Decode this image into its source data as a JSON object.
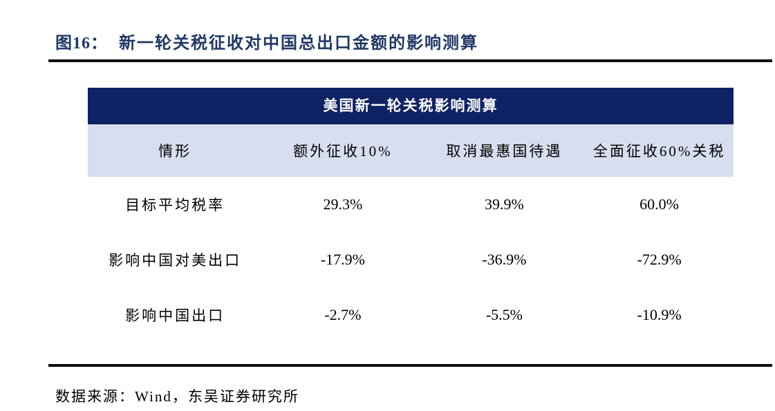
{
  "figure": {
    "label": "图16：",
    "title": "新一轮关税征收对中国总出口金额的影响测算"
  },
  "table": {
    "title": "美国新一轮关税影响测算",
    "columns": [
      "情形",
      "额外征收10%",
      "取消最惠国待遇",
      "全面征收60%关税"
    ],
    "rows": [
      {
        "label": "目标平均税率",
        "values": [
          "29.3%",
          "39.9%",
          "60.0%"
        ]
      },
      {
        "label": "影响中国对美出口",
        "values": [
          "-17.9%",
          "-36.9%",
          "-72.9%"
        ]
      },
      {
        "label": "影响中国出口",
        "values": [
          "-2.7%",
          "-5.5%",
          "-10.9%"
        ]
      }
    ]
  },
  "footer": {
    "source": "数据来源：Wind，东吴证券研究所"
  },
  "colors": {
    "table_header_bg": "#0F2264",
    "table_header_text": "#FFFFFF",
    "subheader_bg": "#D7DEEF",
    "figure_title_text": "#1F3864",
    "rule": "#0D0D0D",
    "body_text": "#000000"
  }
}
